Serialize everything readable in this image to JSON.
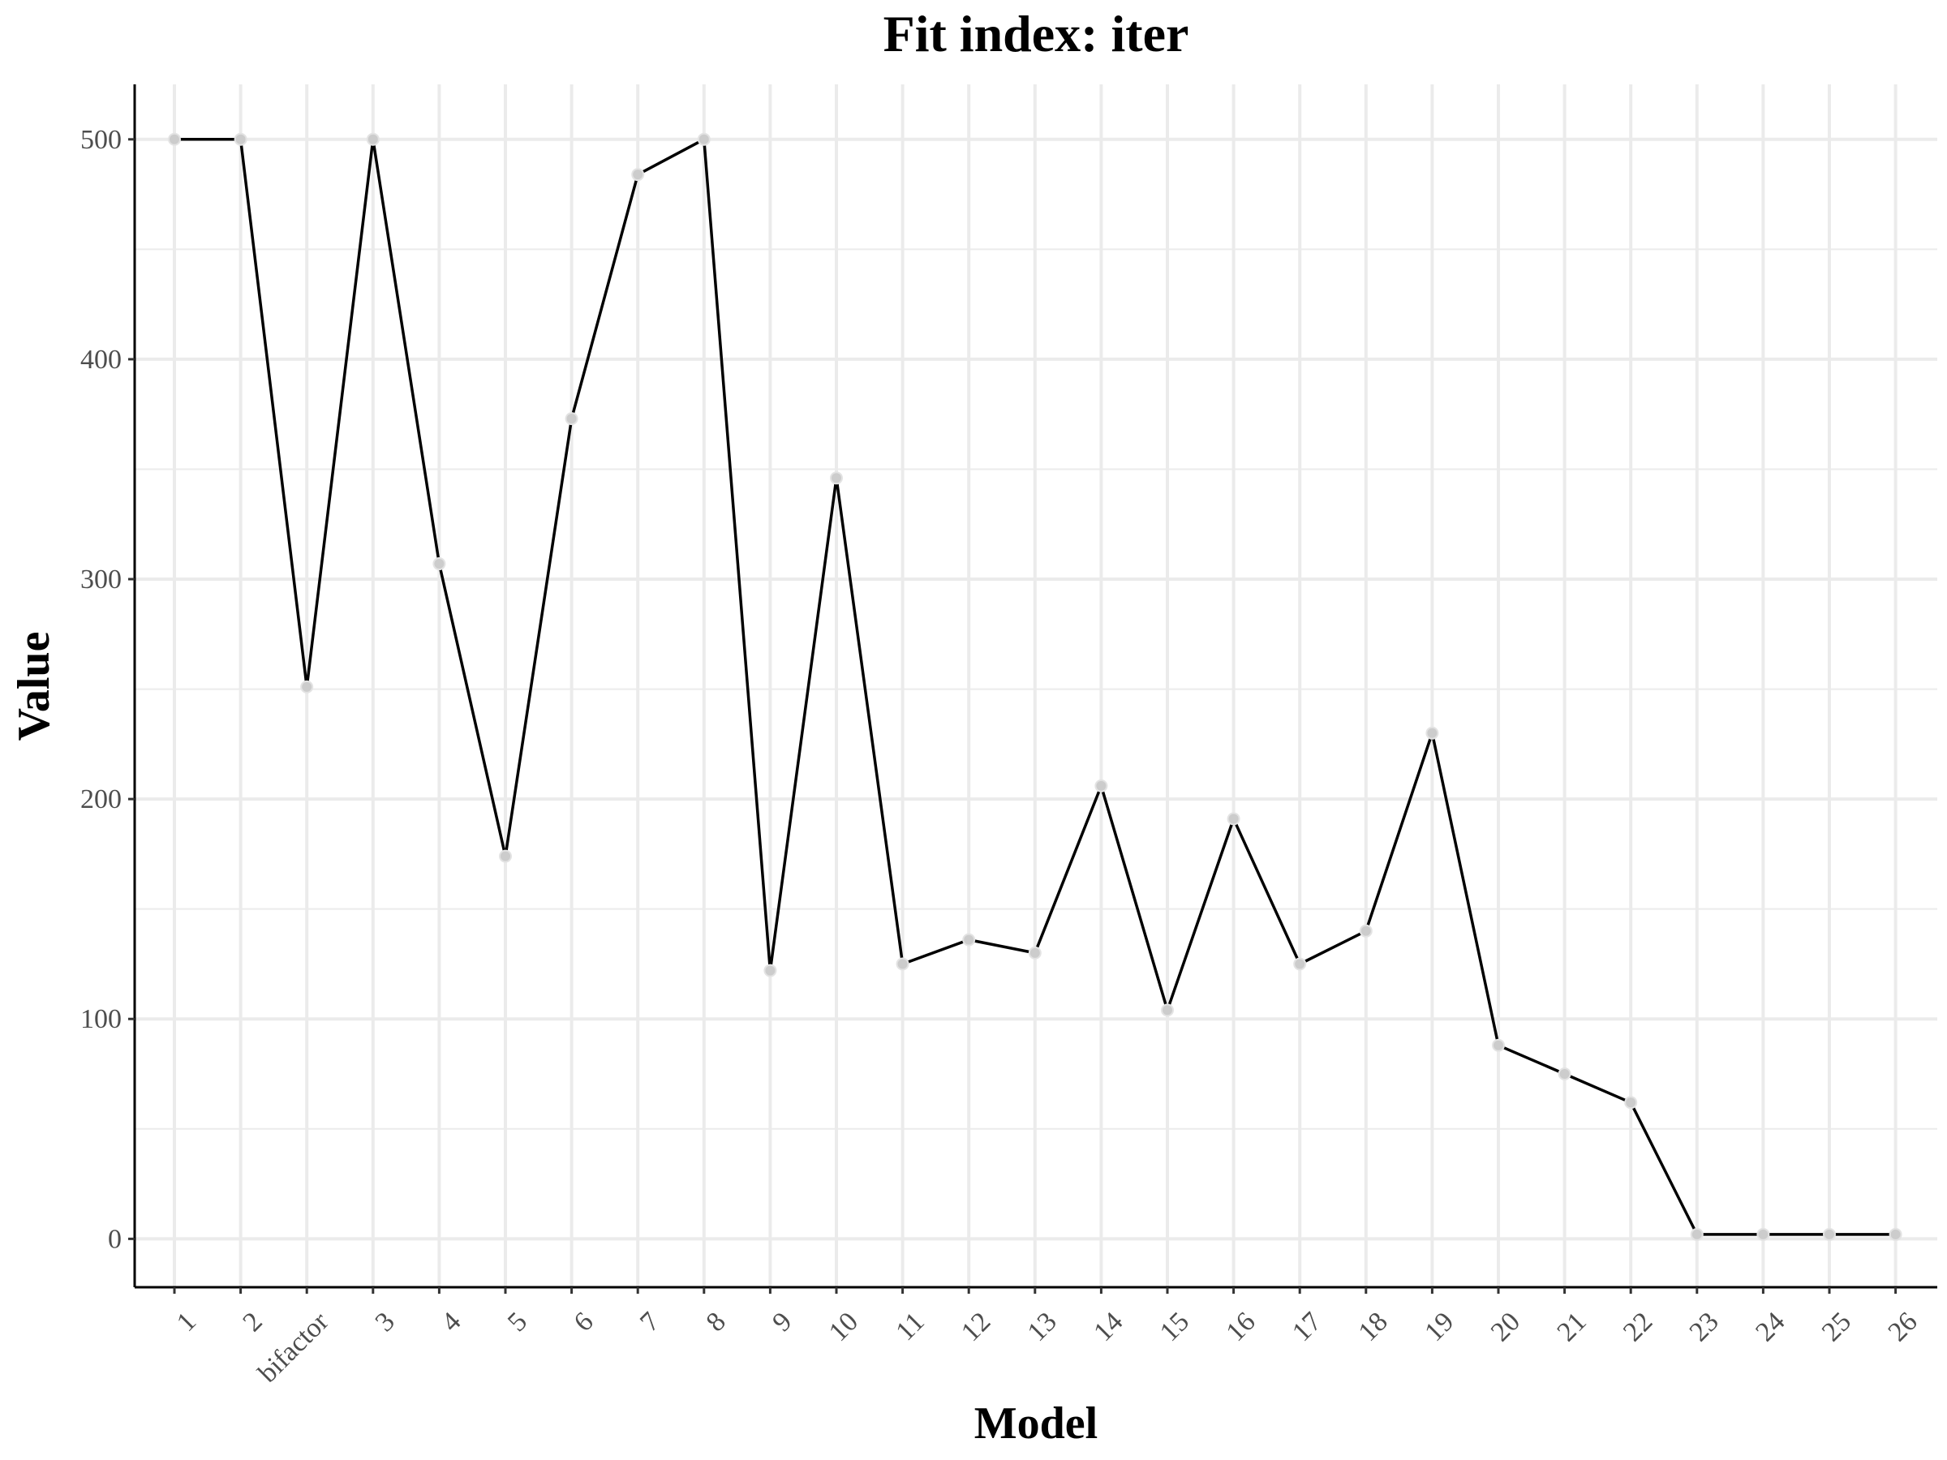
{
  "chart_data": {
    "type": "line",
    "title": "Fit index: iter",
    "xlabel": "Model",
    "ylabel": "Value",
    "categories": [
      "1",
      "2",
      "bifactor",
      "3",
      "4",
      "5",
      "6",
      "7",
      "8",
      "9",
      "10",
      "11",
      "12",
      "13",
      "14",
      "15",
      "16",
      "17",
      "18",
      "19",
      "20",
      "21",
      "22",
      "23",
      "24",
      "25",
      "26"
    ],
    "values": [
      500,
      500,
      251,
      500,
      307,
      174,
      373,
      484,
      500,
      122,
      346,
      125,
      136,
      130,
      206,
      104,
      191,
      125,
      140,
      230,
      88,
      75,
      62,
      2,
      2,
      2,
      2
    ],
    "ylim": [
      -22,
      525
    ],
    "yticks": [
      0,
      100,
      200,
      300,
      400,
      500
    ],
    "grid": true,
    "legend": "none",
    "colors": {
      "line": "#000000",
      "point": "#cccccc",
      "grid": "#ebebeb"
    }
  }
}
